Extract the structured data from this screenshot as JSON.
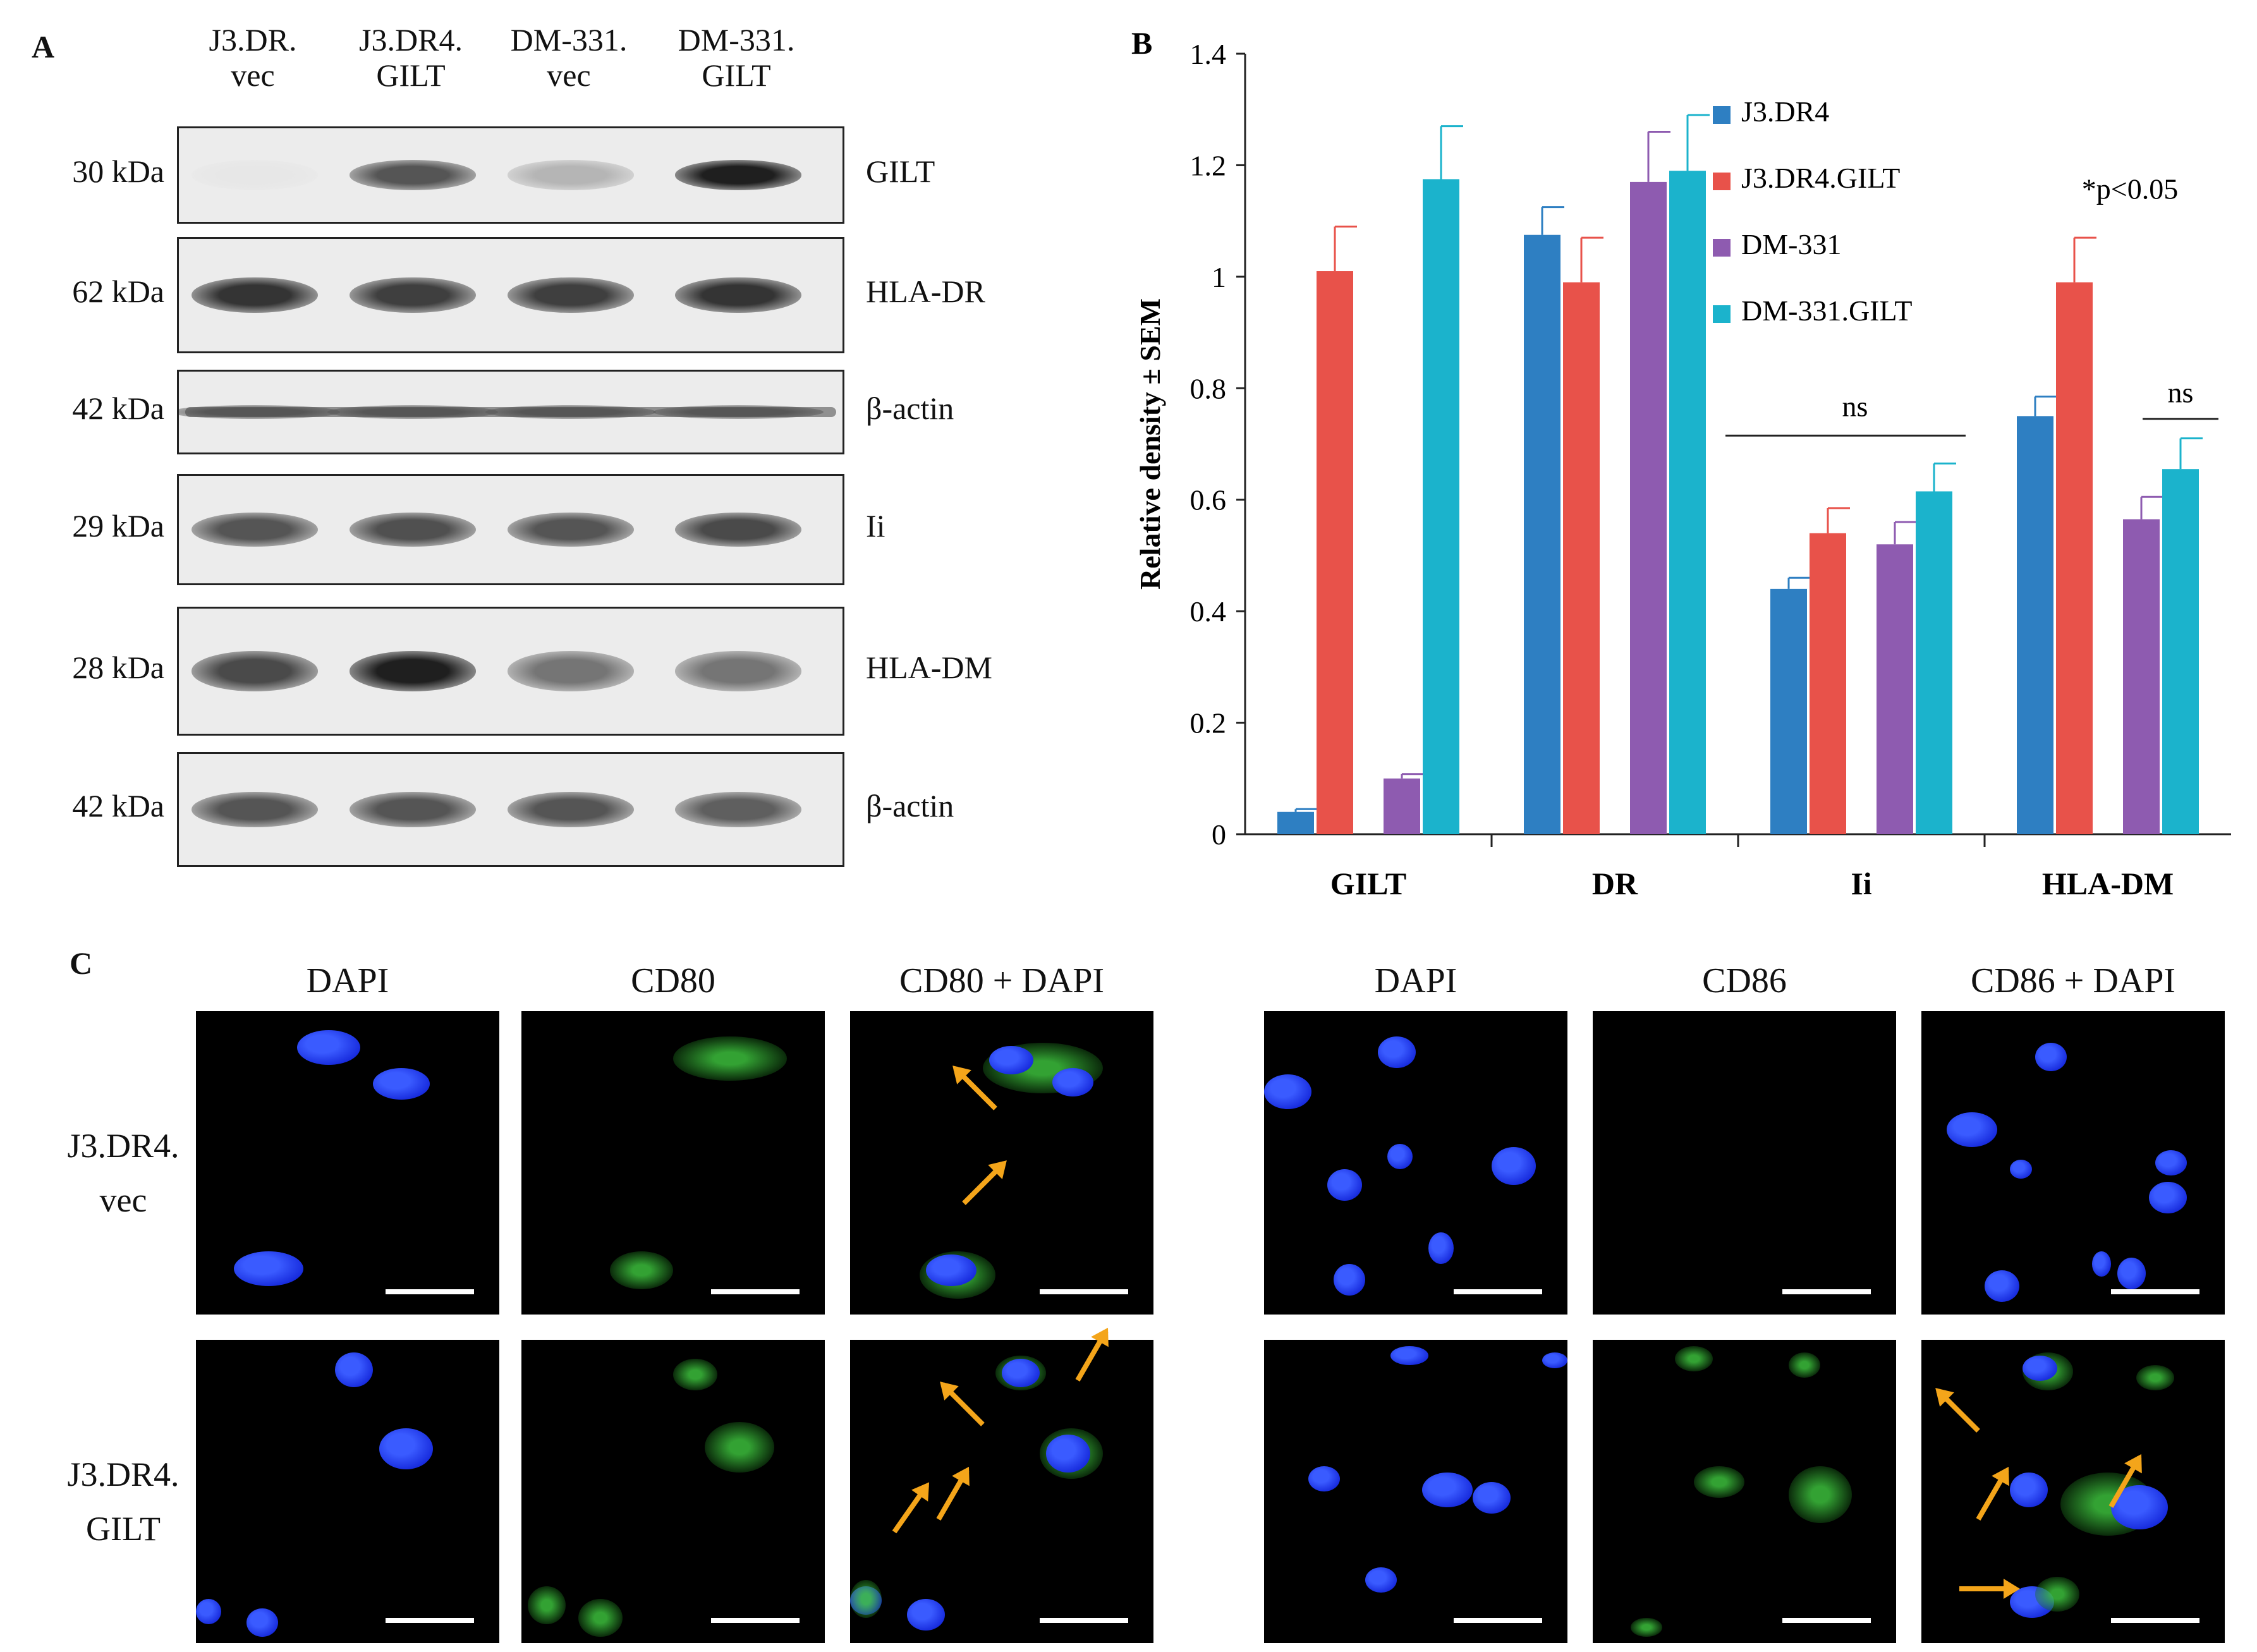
{
  "panelA": {
    "letter": "A",
    "columns": [
      {
        "line1": "J3.DR.",
        "line2": "vec"
      },
      {
        "line1": "J3.DR4.",
        "line2": "GILT"
      },
      {
        "line1": "DM-331.",
        "line2": "vec"
      },
      {
        "line1": "DM-331.",
        "line2": "GILT"
      }
    ],
    "blots": [
      {
        "kda": "30 kDa",
        "label": "GILT",
        "intensity": [
          0.02,
          0.7,
          0.25,
          0.95
        ]
      },
      {
        "kda": "62 kDa",
        "label": "HLA-DR",
        "intensity": [
          0.85,
          0.8,
          0.8,
          0.85
        ]
      },
      {
        "kda": "42 kDa",
        "label": "β-actin",
        "intensity": [
          0.6,
          0.6,
          0.6,
          0.6
        ]
      },
      {
        "kda": "29 kDa",
        "label": "Ii",
        "intensity": [
          0.7,
          0.72,
          0.7,
          0.75
        ]
      },
      {
        "kda": "28 kDa",
        "label": "HLA-DM",
        "intensity": [
          0.75,
          0.95,
          0.55,
          0.55
        ]
      },
      {
        "kda": "42 kDa",
        "label": "β-actin",
        "intensity": [
          0.7,
          0.7,
          0.7,
          0.65
        ]
      }
    ]
  },
  "chart_data": {
    "type": "bar",
    "letter": "B",
    "title": "",
    "xlabel": "",
    "ylabel": "Relative density ± SEM",
    "ylim": [
      0,
      1.4
    ],
    "yticks": [
      "0",
      "0.2",
      "0.4",
      "0.6",
      "0.8",
      "1",
      "1.2",
      "1.4"
    ],
    "categories": [
      "GILT",
      "DR",
      "Ii",
      "HLA-DM"
    ],
    "legend_position": "top-left inside",
    "series": [
      {
        "name": "J3.DR4",
        "color": "#2e7fc2",
        "values": [
          0.04,
          1.075,
          0.44,
          0.75
        ],
        "errors": [
          0.005,
          0.05,
          0.02,
          0.035
        ]
      },
      {
        "name": "J3.DR4.GILT",
        "color": "#e8524a",
        "values": [
          1.01,
          0.99,
          0.54,
          0.99
        ],
        "errors": [
          0.08,
          0.08,
          0.045,
          0.08
        ]
      },
      {
        "name": "DM-331",
        "color": "#8e5bb0",
        "values": [
          0.1,
          1.17,
          0.52,
          0.565
        ],
        "errors": [
          0.008,
          0.09,
          0.04,
          0.04
        ]
      },
      {
        "name": "DM-331.GILT",
        "color": "#1bb3cc",
        "values": [
          1.175,
          1.19,
          0.615,
          0.655
        ],
        "errors": [
          0.095,
          0.1,
          0.05,
          0.055
        ]
      }
    ],
    "annotations": [
      {
        "text": "ns",
        "category": "Ii"
      },
      {
        "text": "*p<0.05",
        "category": "HLA-DM"
      },
      {
        "text": "ns",
        "category": "HLA-DM"
      }
    ]
  },
  "panelC": {
    "letter": "C",
    "heads": [
      "DAPI",
      "CD80",
      "CD80 + DAPI",
      "DAPI",
      "CD86",
      "CD86 + DAPI"
    ],
    "rows": [
      {
        "line1": "J3.DR4.",
        "line2": "vec"
      },
      {
        "line1": "J3.DR4.",
        "line2": "GILT"
      }
    ]
  }
}
